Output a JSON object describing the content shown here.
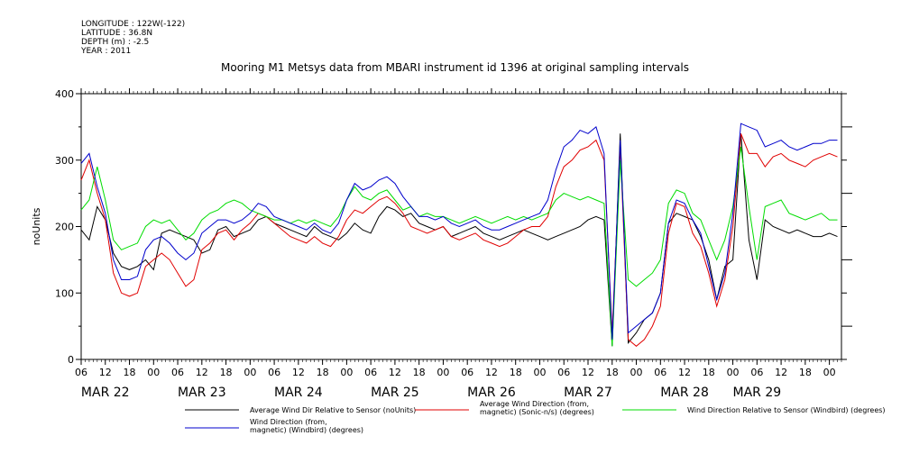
{
  "metadata": {
    "longitude": "LONGITUDE : 122W(-122)",
    "latitude": "LATITUDE : 36.8N",
    "depth": "DEPTH (m) : -2.5",
    "year": "YEAR : 2011"
  },
  "chart_data": {
    "type": "line",
    "title": "Mooring M1 Metsys data from MBARI instrument id 1396 at original sampling intervals",
    "ylabel": "noUnits",
    "ylim": [
      0,
      400
    ],
    "yticks": [
      0,
      100,
      200,
      300,
      400
    ],
    "xlim_hours": [
      0,
      189
    ],
    "hour_ticks": [
      "06",
      "12",
      "18",
      "00",
      "06",
      "12",
      "18",
      "00",
      "06",
      "12",
      "18",
      "00",
      "06",
      "12",
      "18",
      "00",
      "06",
      "12",
      "18",
      "00",
      "06",
      "12",
      "18",
      "00",
      "06",
      "12",
      "18",
      "00",
      "06",
      "12",
      "18",
      "00"
    ],
    "day_labels": [
      "MAR 22",
      "MAR 23",
      "MAR 24",
      "MAR 25",
      "MAR 26",
      "MAR 27",
      "MAR 28",
      "MAR 29"
    ],
    "series": [
      {
        "name": "Average Wind Dir Relative to Sensor (noUnits)",
        "legend_lines": [
          "Average Wind Dir Relative to Sensor (noUnits)"
        ],
        "color": "#000000",
        "x_hours": [
          0,
          2,
          4,
          6,
          8,
          10,
          12,
          14,
          16,
          18,
          20,
          22,
          24,
          26,
          28,
          30,
          32,
          34,
          36,
          38,
          40,
          42,
          44,
          46,
          48,
          50,
          52,
          54,
          56,
          58,
          60,
          62,
          64,
          66,
          68,
          70,
          72,
          74,
          76,
          78,
          80,
          82,
          84,
          86,
          88,
          90,
          92,
          94,
          96,
          98,
          100,
          102,
          104,
          106,
          108,
          110,
          112,
          114,
          116,
          118,
          120,
          122,
          124,
          126,
          128,
          130,
          132,
          134,
          136,
          138,
          140,
          142,
          144,
          146,
          148,
          150,
          152,
          154,
          156,
          158,
          160,
          162,
          164,
          166,
          168,
          170,
          172,
          174,
          176,
          178,
          180,
          182,
          184,
          186,
          188
        ],
        "values": [
          195,
          180,
          230,
          210,
          160,
          140,
          135,
          140,
          150,
          135,
          190,
          195,
          190,
          185,
          180,
          160,
          165,
          195,
          200,
          185,
          190,
          195,
          210,
          215,
          205,
          200,
          195,
          190,
          185,
          200,
          190,
          185,
          180,
          190,
          205,
          195,
          190,
          215,
          230,
          225,
          215,
          220,
          205,
          200,
          195,
          200,
          185,
          190,
          195,
          200,
          190,
          185,
          180,
          185,
          190,
          195,
          190,
          185,
          180,
          185,
          190,
          195,
          200,
          210,
          215,
          210,
          20,
          340,
          25,
          40,
          60,
          70,
          100,
          205,
          220,
          215,
          210,
          185,
          150,
          90,
          140,
          150,
          340,
          180,
          120,
          210,
          200,
          195,
          190,
          195,
          190,
          185,
          185,
          190,
          185
        ]
      },
      {
        "name": "Average Wind Direction (from, magnetic) (Sonic-n/s) (degrees)",
        "legend_lines": [
          "Average Wind Direction (from,",
          "magnetic) (Sonic-n/s) (degrees)"
        ],
        "color": "#e00000",
        "x_hours": [
          0,
          2,
          4,
          6,
          8,
          10,
          12,
          14,
          16,
          18,
          20,
          22,
          24,
          26,
          28,
          30,
          32,
          34,
          36,
          38,
          40,
          42,
          44,
          46,
          48,
          50,
          52,
          54,
          56,
          58,
          60,
          62,
          64,
          66,
          68,
          70,
          72,
          74,
          76,
          78,
          80,
          82,
          84,
          86,
          88,
          90,
          92,
          94,
          96,
          98,
          100,
          102,
          104,
          106,
          108,
          110,
          112,
          114,
          116,
          118,
          120,
          122,
          124,
          126,
          128,
          130,
          132,
          134,
          136,
          138,
          140,
          142,
          144,
          146,
          148,
          150,
          152,
          154,
          156,
          158,
          160,
          162,
          164,
          166,
          168,
          170,
          172,
          174,
          176,
          178,
          180,
          182,
          184,
          186,
          188
        ],
        "values": [
          270,
          300,
          250,
          210,
          130,
          100,
          95,
          100,
          140,
          150,
          160,
          150,
          130,
          110,
          120,
          165,
          175,
          190,
          195,
          180,
          195,
          205,
          220,
          215,
          205,
          195,
          185,
          180,
          175,
          185,
          175,
          170,
          185,
          210,
          225,
          220,
          230,
          240,
          245,
          235,
          220,
          200,
          195,
          190,
          195,
          200,
          185,
          180,
          185,
          190,
          180,
          175,
          170,
          175,
          185,
          195,
          200,
          200,
          215,
          260,
          290,
          300,
          315,
          320,
          330,
          300,
          40,
          320,
          30,
          20,
          30,
          50,
          80,
          190,
          235,
          230,
          190,
          170,
          130,
          80,
          120,
          200,
          340,
          310,
          310,
          290,
          305,
          310,
          300,
          295,
          290,
          300,
          305,
          310,
          305
        ]
      },
      {
        "name": "Wind Direction Relative to Sensor (Windbird) (degrees)",
        "legend_lines": [
          "Wind Direction Relative to Sensor (Windbird) (degrees)"
        ],
        "color": "#00dd00",
        "x_hours": [
          0,
          2,
          4,
          6,
          8,
          10,
          12,
          14,
          16,
          18,
          20,
          22,
          24,
          26,
          28,
          30,
          32,
          34,
          36,
          38,
          40,
          42,
          44,
          46,
          48,
          50,
          52,
          54,
          56,
          58,
          60,
          62,
          64,
          66,
          68,
          70,
          72,
          74,
          76,
          78,
          80,
          82,
          84,
          86,
          88,
          90,
          92,
          94,
          96,
          98,
          100,
          102,
          104,
          106,
          108,
          110,
          112,
          114,
          116,
          118,
          120,
          122,
          124,
          126,
          128,
          130,
          132,
          134,
          136,
          138,
          140,
          142,
          144,
          146,
          148,
          150,
          152,
          154,
          156,
          158,
          160,
          162,
          164,
          166,
          168,
          170,
          172,
          174,
          176,
          178,
          180,
          182,
          184,
          186,
          188
        ],
        "values": [
          225,
          240,
          290,
          240,
          180,
          165,
          170,
          175,
          200,
          210,
          205,
          210,
          195,
          180,
          190,
          210,
          220,
          225,
          235,
          240,
          235,
          225,
          220,
          215,
          210,
          210,
          205,
          210,
          205,
          210,
          205,
          200,
          215,
          240,
          260,
          245,
          240,
          250,
          255,
          240,
          225,
          230,
          215,
          220,
          215,
          215,
          210,
          205,
          210,
          215,
          210,
          205,
          210,
          215,
          210,
          215,
          210,
          215,
          220,
          240,
          250,
          245,
          240,
          245,
          240,
          235,
          20,
          300,
          120,
          110,
          120,
          130,
          150,
          235,
          255,
          250,
          220,
          210,
          180,
          150,
          180,
          230,
          320,
          230,
          150,
          230,
          235,
          240,
          220,
          215,
          210,
          215,
          220,
          210,
          210
        ]
      },
      {
        "name": "Wind Direction (from, magnetic) (Windbird) (degrees)",
        "legend_lines": [
          "Wind Direction (from,",
          "magnetic) (Windbird) (degrees)"
        ],
        "color": "#0000cc",
        "x_hours": [
          0,
          2,
          4,
          6,
          8,
          10,
          12,
          14,
          16,
          18,
          20,
          22,
          24,
          26,
          28,
          30,
          32,
          34,
          36,
          38,
          40,
          42,
          44,
          46,
          48,
          50,
          52,
          54,
          56,
          58,
          60,
          62,
          64,
          66,
          68,
          70,
          72,
          74,
          76,
          78,
          80,
          82,
          84,
          86,
          88,
          90,
          92,
          94,
          96,
          98,
          100,
          102,
          104,
          106,
          108,
          110,
          112,
          114,
          116,
          118,
          120,
          122,
          124,
          126,
          128,
          130,
          132,
          134,
          136,
          138,
          140,
          142,
          144,
          146,
          148,
          150,
          152,
          154,
          156,
          158,
          160,
          162,
          164,
          166,
          168,
          170,
          172,
          174,
          176,
          178,
          180,
          182,
          184,
          186,
          188
        ],
        "values": [
          295,
          310,
          260,
          220,
          150,
          120,
          120,
          125,
          165,
          180,
          185,
          175,
          160,
          150,
          160,
          190,
          200,
          210,
          210,
          205,
          210,
          220,
          235,
          230,
          215,
          210,
          205,
          200,
          195,
          205,
          195,
          190,
          205,
          240,
          265,
          255,
          260,
          270,
          275,
          265,
          245,
          230,
          215,
          215,
          210,
          215,
          205,
          200,
          205,
          210,
          200,
          195,
          195,
          200,
          205,
          210,
          215,
          220,
          240,
          285,
          320,
          330,
          345,
          340,
          350,
          310,
          30,
          330,
          40,
          50,
          60,
          70,
          100,
          205,
          240,
          235,
          210,
          190,
          140,
          90,
          130,
          220,
          355,
          350,
          345,
          320,
          325,
          330,
          320,
          315,
          320,
          325,
          325,
          330,
          330
        ]
      }
    ]
  }
}
